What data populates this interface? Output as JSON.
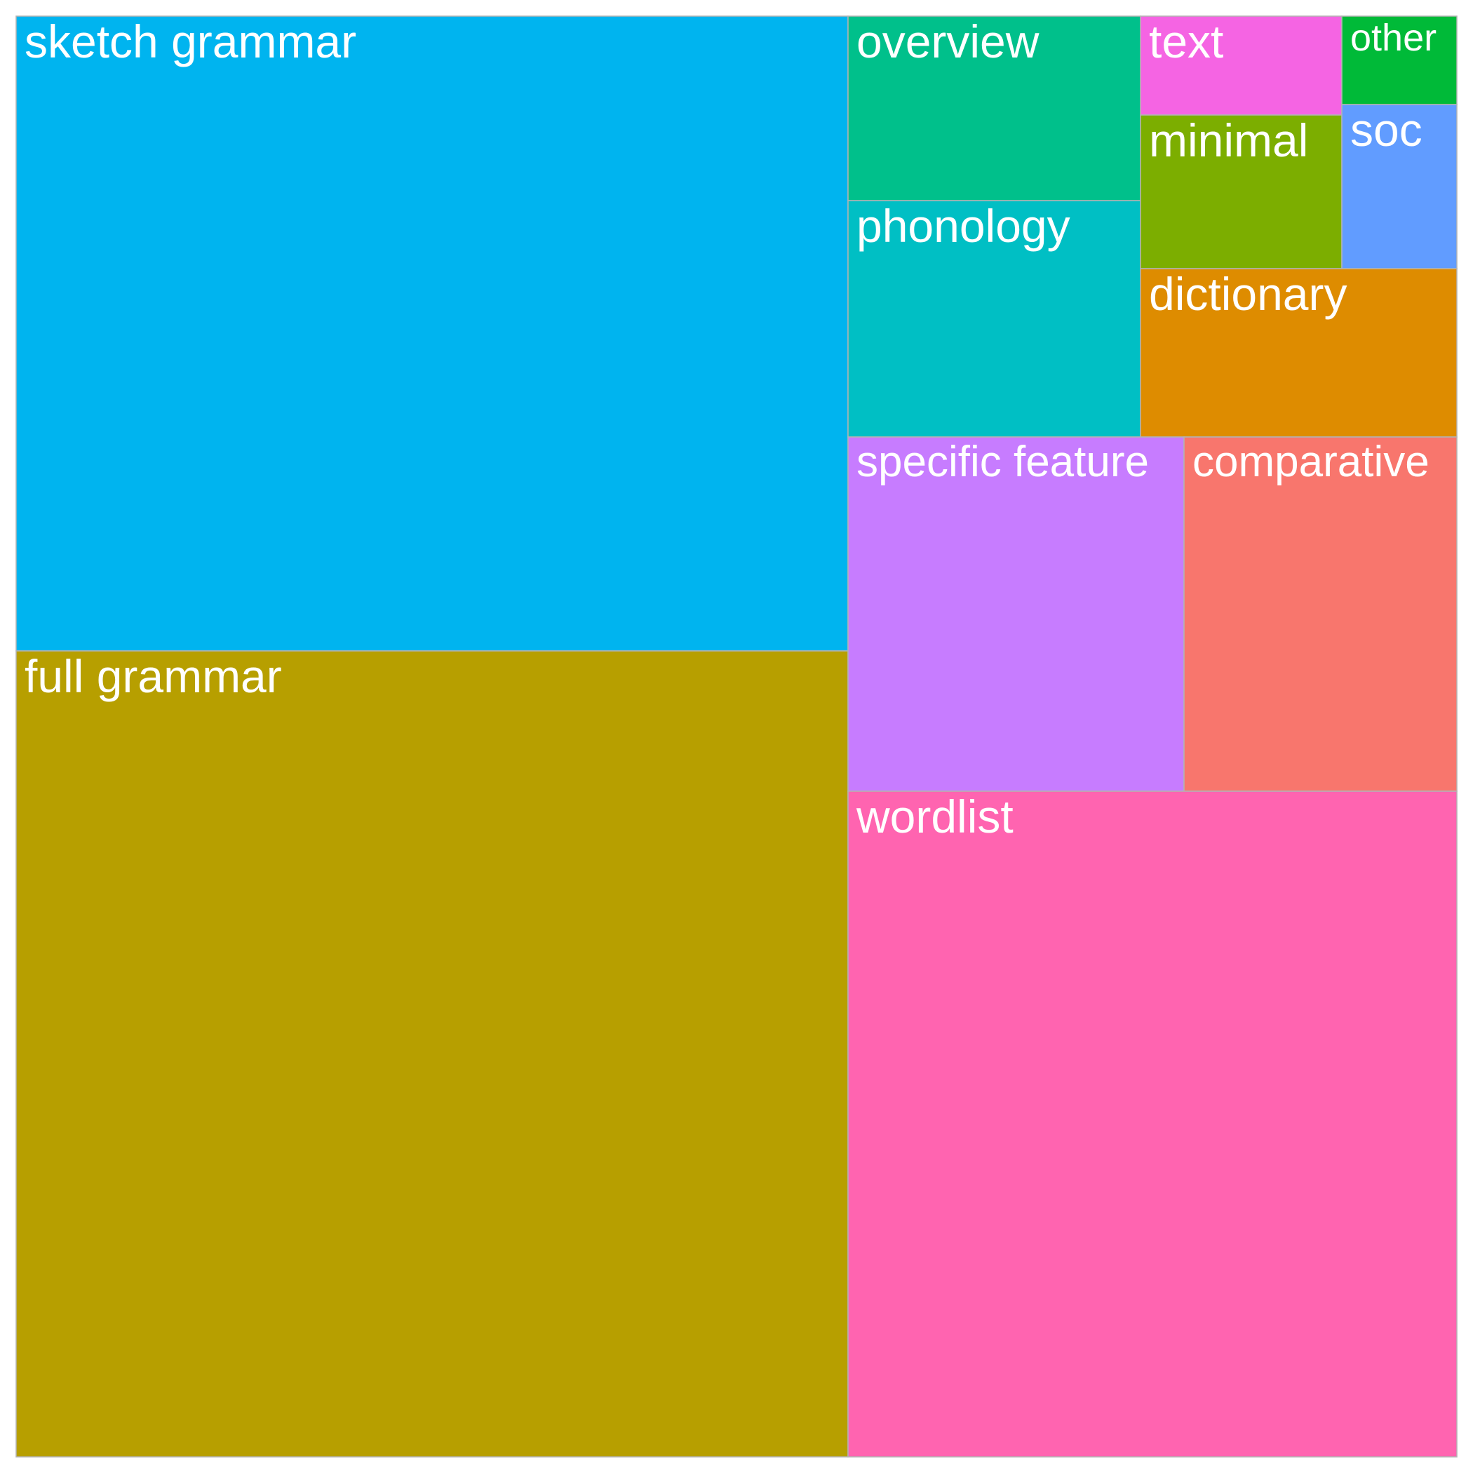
{
  "chart_data": {
    "type": "treemap",
    "items": [
      {
        "label": "sketch grammar",
        "value": 5381,
        "color": "#00B4EF"
      },
      {
        "label": "full grammar",
        "value": 6820,
        "color": "#B79F00"
      },
      {
        "label": "overview",
        "value": 541,
        "color": "#00C08B"
      },
      {
        "label": "phonology",
        "value": 700,
        "color": "#00BFC4"
      },
      {
        "label": "text",
        "value": 202,
        "color": "#F564E3"
      },
      {
        "label": "minimal",
        "value": 316,
        "color": "#7CAE00"
      },
      {
        "label": "other",
        "value": 97,
        "color": "#00BA38"
      },
      {
        "label": "soc",
        "value": 240,
        "color": "#619CFF"
      },
      {
        "label": "dictionary",
        "value": 545,
        "color": "#DE8C00"
      },
      {
        "label": "specific feature",
        "value": 1207,
        "color": "#C77CFF"
      },
      {
        "label": "comparative",
        "value": 982,
        "color": "#F8766D"
      },
      {
        "label": "wordlist",
        "value": 4135,
        "color": "#FF64B0"
      }
    ]
  }
}
